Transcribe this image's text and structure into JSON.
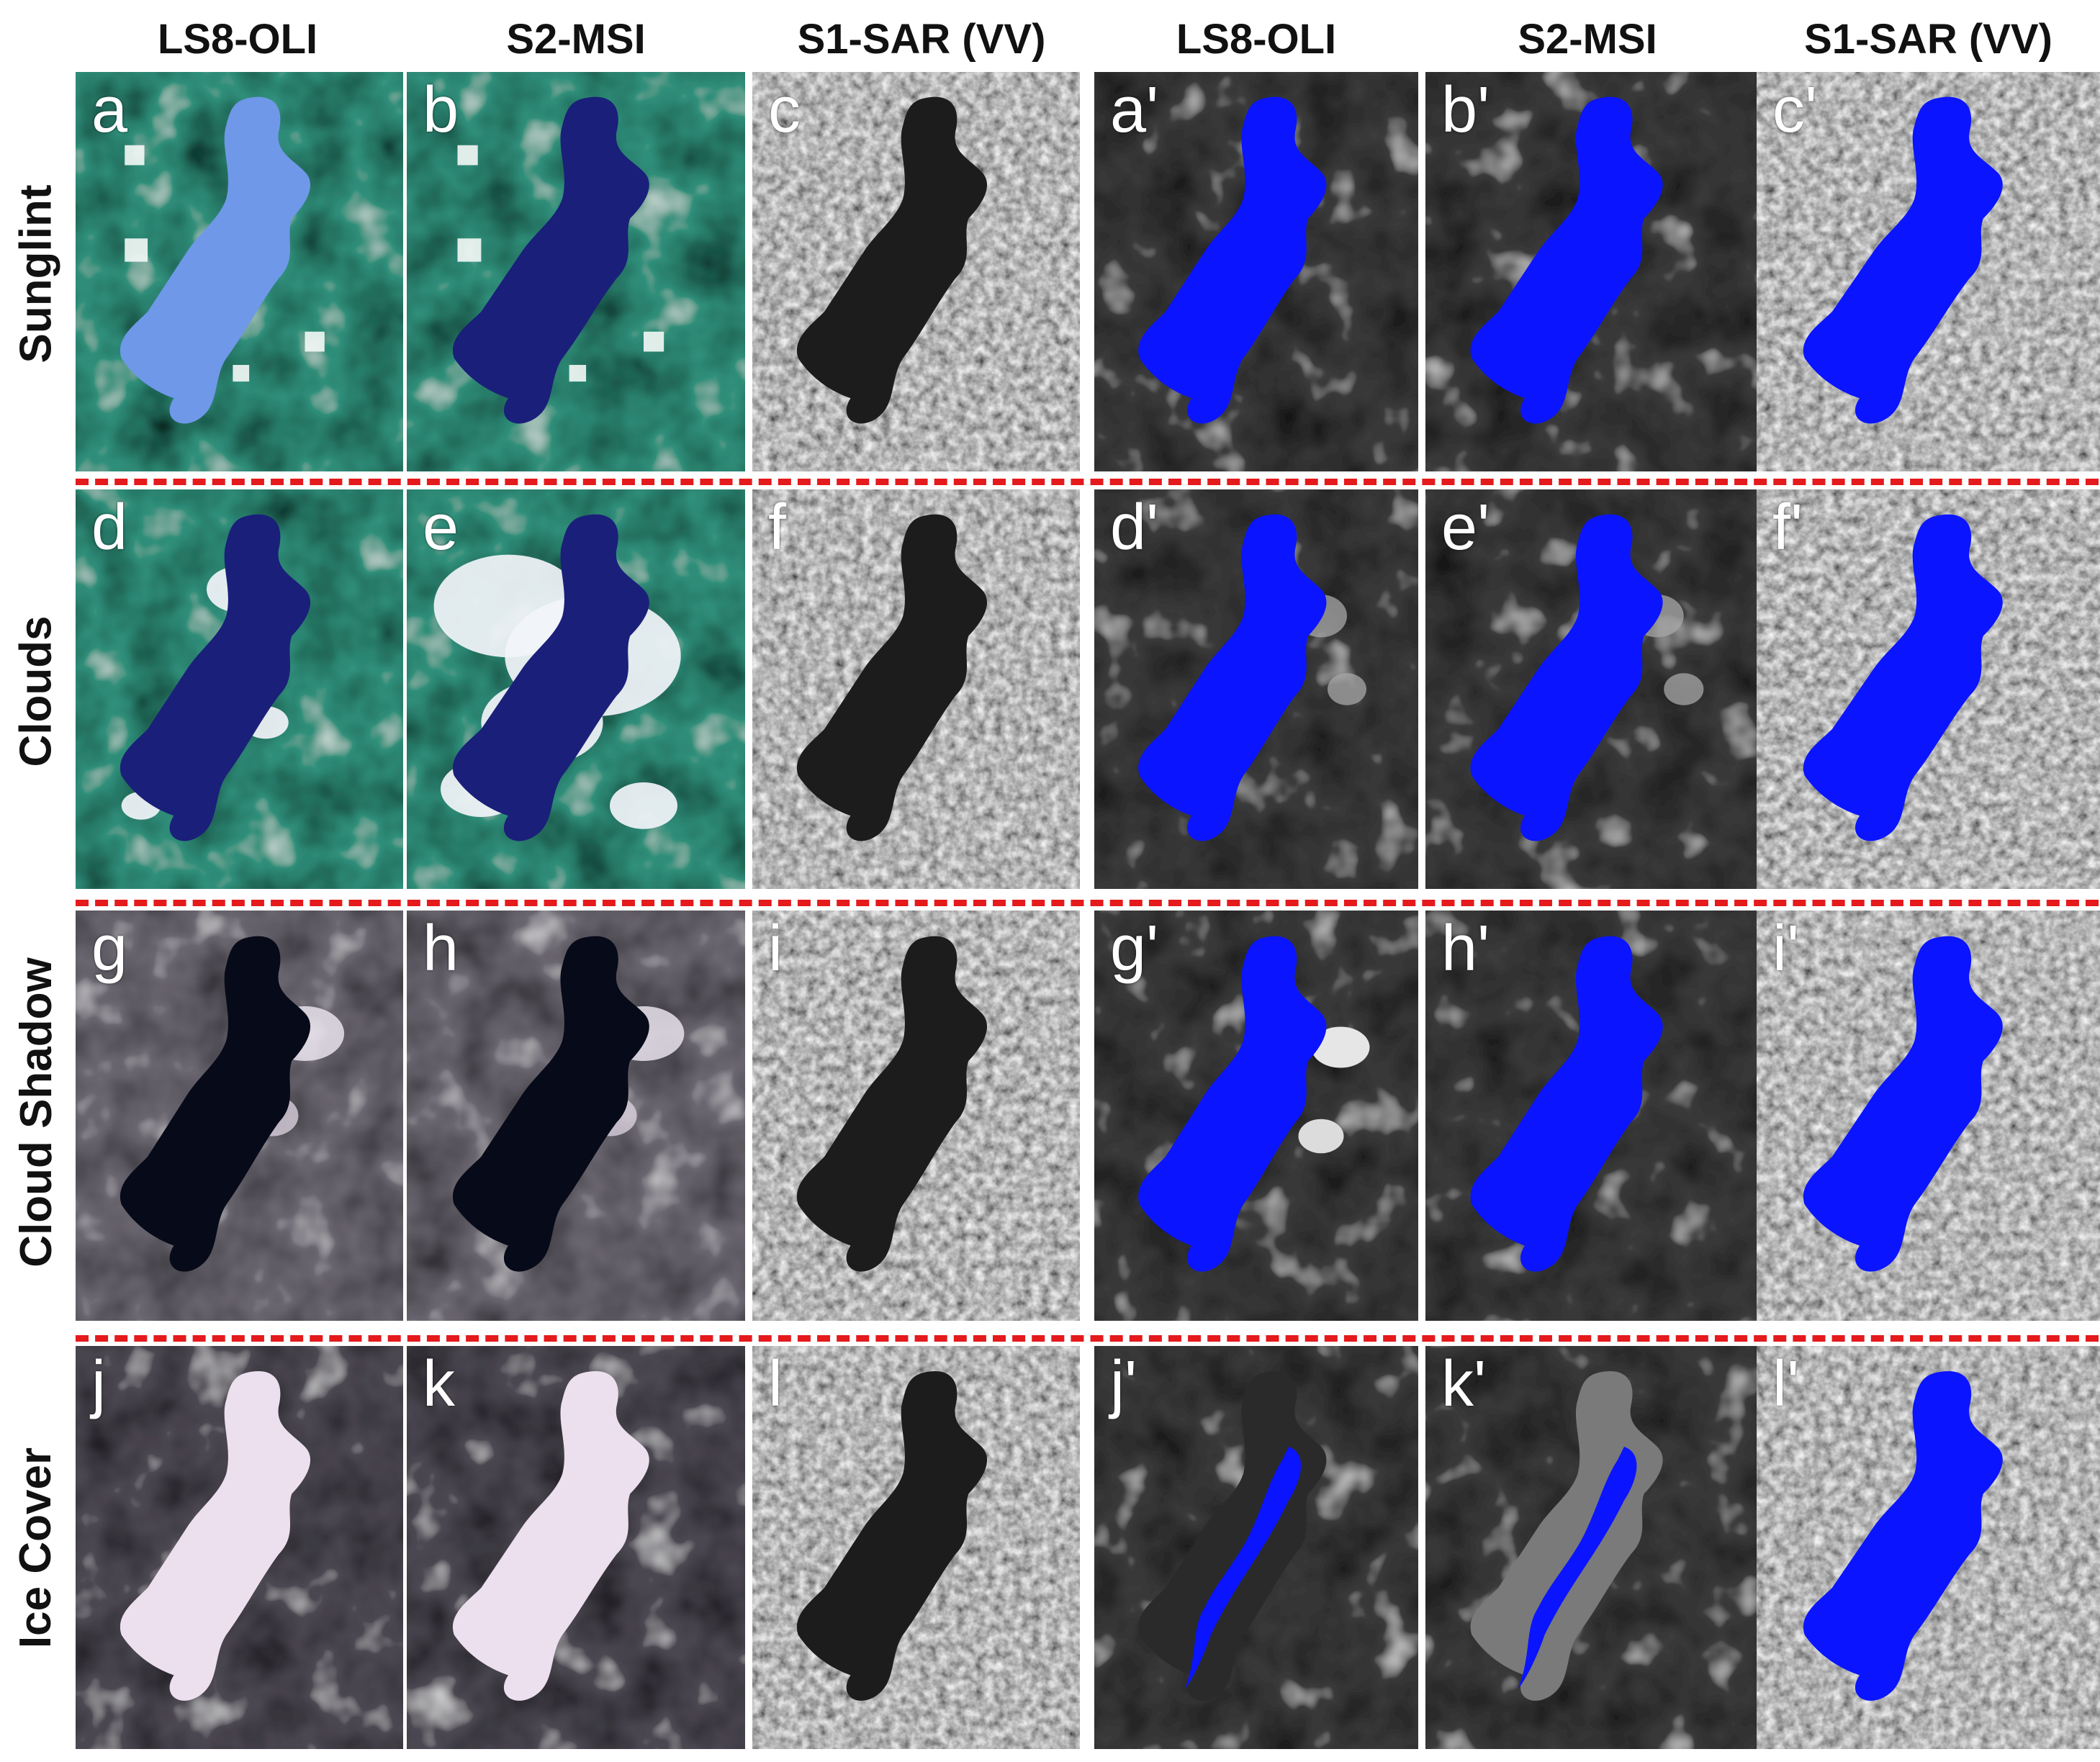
{
  "columns": [
    "LS8-OLI",
    "S2-MSI",
    "S1-SAR (VV)",
    "LS8-OLI",
    "S2-MSI",
    "S1-SAR (VV)"
  ],
  "rows": [
    "Sunglint",
    "Clouds",
    "Cloud Shadow",
    "Ice Cover"
  ],
  "panel_labels": [
    [
      "a",
      "b",
      "c",
      "a'",
      "b'",
      "c'"
    ],
    [
      "d",
      "e",
      "f",
      "d'",
      "e'",
      "f'"
    ],
    [
      "g",
      "h",
      "i",
      "g'",
      "h'",
      "i'"
    ],
    [
      "j",
      "k",
      "l",
      "j'",
      "k'",
      "l'"
    ]
  ],
  "colors": {
    "water_mask": "#0a14ff",
    "separator": "#e41a1c",
    "sunglint_land": "#2f8f7a",
    "sunglint_water": "#6f98e8",
    "s2_water": "#1a1f7a",
    "cloud": "#f2f4f8",
    "shadow_water": "#070a18",
    "shadow_land": "#6a6670",
    "ice": "#ece0ee",
    "ice_land": "#4c4852",
    "sar_land": "#b4b4b4",
    "sar_water": "#1c1c1c",
    "gray_land": "#3a3a3a"
  }
}
